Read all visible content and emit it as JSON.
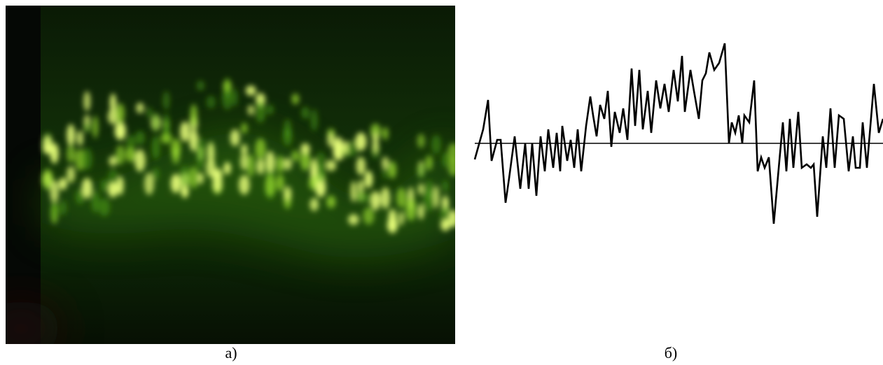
{
  "figure": {
    "panels": [
      {
        "label": "а)"
      },
      {
        "label": "б)"
      }
    ]
  }
}
